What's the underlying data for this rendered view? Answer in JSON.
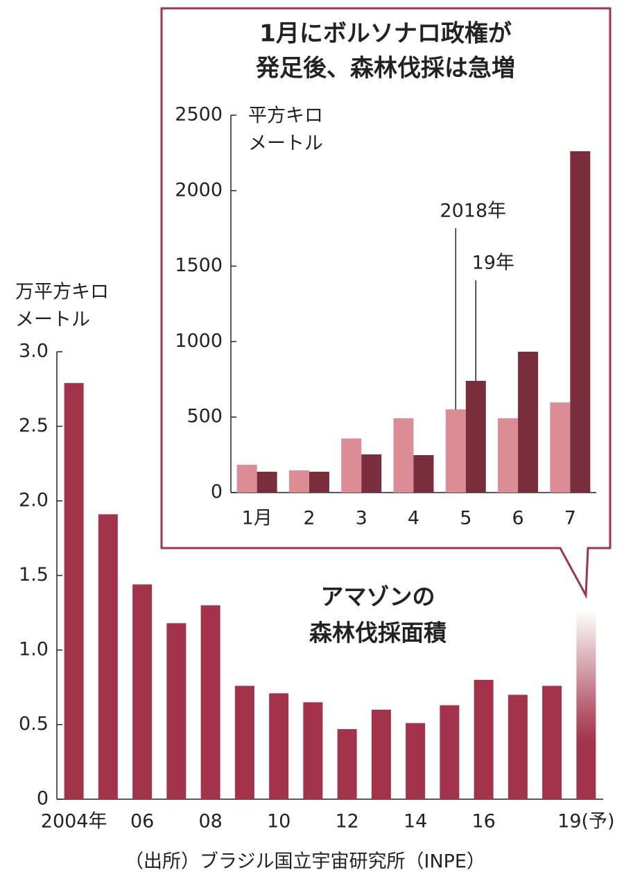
{
  "chart_data": [
    {
      "type": "bar",
      "ylabel": [
        "万平方キロ",
        "メートル"
      ],
      "categories": [
        "2004年",
        null,
        "06",
        null,
        "08",
        null,
        "10",
        null,
        "12",
        null,
        "14",
        null,
        "16",
        null,
        null,
        "19(予)"
      ],
      "values": [
        2.79,
        1.91,
        1.44,
        1.18,
        1.3,
        0.76,
        0.71,
        0.65,
        0.47,
        0.6,
        0.51,
        0.63,
        0.8,
        0.7,
        0.76,
        1.27
      ],
      "color": "#a3324b",
      "ylim": [
        0,
        3.0
      ],
      "yticks": [
        0,
        {
          "value": 0.5,
          "label": "0.5"
        },
        {
          "value": 1.0,
          "label": "1.0"
        },
        {
          "value": 1.5,
          "label": "1.5"
        },
        {
          "value": 2.0,
          "label": "2.0"
        },
        {
          "value": 2.5,
          "label": "2.5"
        },
        {
          "value": 3.0,
          "label": "3.0"
        }
      ],
      "annotation": [
        "アマゾンの",
        "森林伐採面積"
      ],
      "source": "（出所）ブラジル国立宇宙研究所（INPE）"
    },
    {
      "type": "grouped_bar",
      "title": [
        "1月にボルソナロ政権が",
        "発足後、森林伐採は急増"
      ],
      "ylabel": [
        "平方キロ",
        "メートル"
      ],
      "categories": [
        "1月",
        "2",
        "3",
        "4",
        "5",
        "6",
        "7"
      ],
      "series": [
        {
          "name": "2018年",
          "color": "#dc8c95",
          "values": [
            184,
            147,
            358,
            492,
            551,
            492,
            597
          ]
        },
        {
          "name": "19年",
          "color": "#7a2d3a",
          "values": [
            138,
            138,
            253,
            248,
            740,
            933,
            2261
          ]
        }
      ],
      "ylim": [
        0,
        2500
      ],
      "yticks": [
        0,
        500,
        1000,
        1500,
        2000,
        2500
      ]
    }
  ]
}
